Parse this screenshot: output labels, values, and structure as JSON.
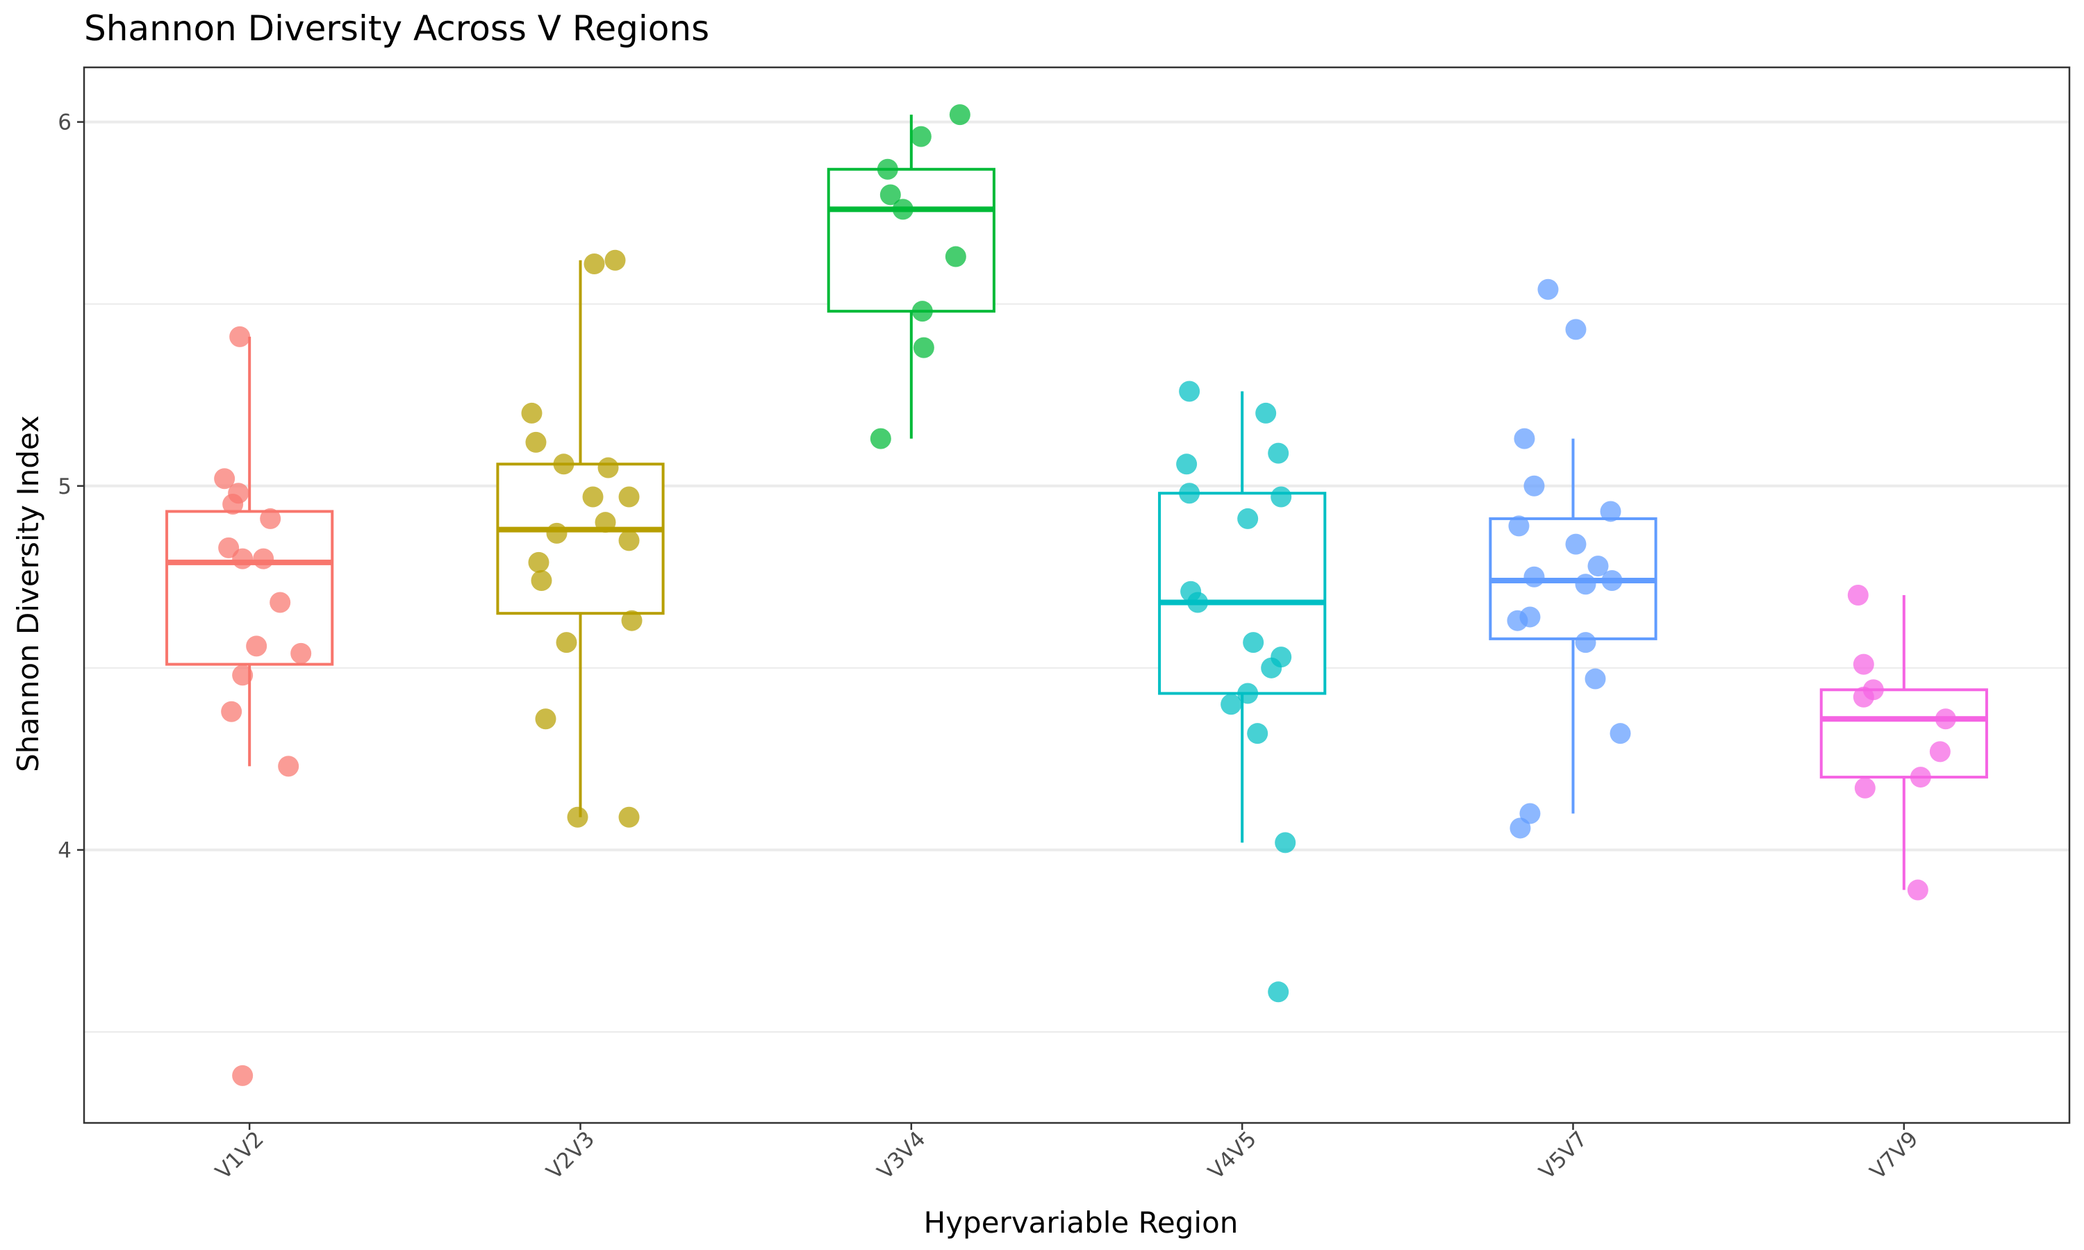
{
  "chart_data": {
    "type": "box",
    "title": "Shannon Diversity Across V Regions",
    "xlabel": "Hypervariable Region",
    "ylabel": "Shannon Diversity Index",
    "ylim": [
      3.25,
      6.15
    ],
    "y_ticks": [
      4,
      5,
      6
    ],
    "grid": true,
    "legend": "none",
    "categories": [
      "V1V2",
      "V2V3",
      "V3V4",
      "V4V5",
      "V5V7",
      "V7V9"
    ],
    "colors": [
      "#F8766D",
      "#B79F00",
      "#00BA38",
      "#00BFC4",
      "#619CFF",
      "#F564E3"
    ],
    "boxes": [
      {
        "q1": 4.51,
        "median": 4.79,
        "q3": 4.93,
        "whisker_low": 4.23,
        "whisker_high": 5.41
      },
      {
        "q1": 4.65,
        "median": 4.88,
        "q3": 5.06,
        "whisker_low": 4.09,
        "whisker_high": 5.62
      },
      {
        "q1": 5.48,
        "median": 5.76,
        "q3": 5.87,
        "whisker_low": 5.13,
        "whisker_high": 6.02
      },
      {
        "q1": 4.43,
        "median": 4.68,
        "q3": 4.98,
        "whisker_low": 4.02,
        "whisker_high": 5.26
      },
      {
        "q1": 4.58,
        "median": 4.74,
        "q3": 4.91,
        "whisker_low": 4.1,
        "whisker_high": 5.13
      },
      {
        "q1": 4.2,
        "median": 4.36,
        "q3": 4.44,
        "whisker_low": 3.89,
        "whisker_high": 4.7
      }
    ],
    "points": [
      [
        {
          "x": -0.07,
          "y": 5.41
        },
        {
          "x": -0.18,
          "y": 5.02
        },
        {
          "x": -0.08,
          "y": 4.98
        },
        {
          "x": -0.12,
          "y": 4.95
        },
        {
          "x": 0.15,
          "y": 4.91
        },
        {
          "x": -0.15,
          "y": 4.83
        },
        {
          "x": -0.05,
          "y": 4.8
        },
        {
          "x": 0.1,
          "y": 4.8
        },
        {
          "x": 0.22,
          "y": 4.68
        },
        {
          "x": 0.05,
          "y": 4.56
        },
        {
          "x": 0.37,
          "y": 4.54
        },
        {
          "x": -0.05,
          "y": 4.48
        },
        {
          "x": -0.13,
          "y": 4.38
        },
        {
          "x": 0.28,
          "y": 4.23
        },
        {
          "x": -0.05,
          "y": 3.38
        }
      ],
      [
        {
          "x": 0.25,
          "y": 5.62
        },
        {
          "x": 0.1,
          "y": 5.61
        },
        {
          "x": -0.35,
          "y": 5.2
        },
        {
          "x": -0.32,
          "y": 5.12
        },
        {
          "x": -0.12,
          "y": 5.06
        },
        {
          "x": 0.2,
          "y": 5.05
        },
        {
          "x": 0.09,
          "y": 4.97
        },
        {
          "x": 0.35,
          "y": 4.97
        },
        {
          "x": 0.18,
          "y": 4.9
        },
        {
          "x": -0.17,
          "y": 4.87
        },
        {
          "x": 0.35,
          "y": 4.85
        },
        {
          "x": -0.3,
          "y": 4.79
        },
        {
          "x": -0.28,
          "y": 4.74
        },
        {
          "x": 0.37,
          "y": 4.63
        },
        {
          "x": -0.1,
          "y": 4.57
        },
        {
          "x": -0.25,
          "y": 4.36
        },
        {
          "x": -0.02,
          "y": 4.09
        },
        {
          "x": 0.35,
          "y": 4.09
        }
      ],
      [
        {
          "x": 0.35,
          "y": 6.02
        },
        {
          "x": 0.07,
          "y": 5.96
        },
        {
          "x": -0.17,
          "y": 5.87
        },
        {
          "x": -0.15,
          "y": 5.8
        },
        {
          "x": -0.06,
          "y": 5.76
        },
        {
          "x": 0.32,
          "y": 5.63
        },
        {
          "x": 0.08,
          "y": 5.48
        },
        {
          "x": 0.09,
          "y": 5.38
        },
        {
          "x": -0.22,
          "y": 5.13
        }
      ],
      [
        {
          "x": -0.38,
          "y": 5.26
        },
        {
          "x": 0.17,
          "y": 5.2
        },
        {
          "x": 0.26,
          "y": 5.09
        },
        {
          "x": -0.4,
          "y": 5.06
        },
        {
          "x": -0.38,
          "y": 4.98
        },
        {
          "x": 0.28,
          "y": 4.97
        },
        {
          "x": 0.04,
          "y": 4.91
        },
        {
          "x": -0.37,
          "y": 4.71
        },
        {
          "x": -0.32,
          "y": 4.68
        },
        {
          "x": 0.08,
          "y": 4.57
        },
        {
          "x": 0.28,
          "y": 4.53
        },
        {
          "x": 0.21,
          "y": 4.5
        },
        {
          "x": 0.04,
          "y": 4.43
        },
        {
          "x": -0.08,
          "y": 4.4
        },
        {
          "x": 0.11,
          "y": 4.32
        },
        {
          "x": 0.31,
          "y": 4.02
        },
        {
          "x": 0.26,
          "y": 3.61
        }
      ],
      [
        {
          "x": -0.18,
          "y": 5.54
        },
        {
          "x": 0.02,
          "y": 5.43
        },
        {
          "x": -0.35,
          "y": 5.13
        },
        {
          "x": -0.28,
          "y": 5.0
        },
        {
          "x": 0.27,
          "y": 4.93
        },
        {
          "x": -0.39,
          "y": 4.89
        },
        {
          "x": 0.02,
          "y": 4.84
        },
        {
          "x": 0.18,
          "y": 4.78
        },
        {
          "x": -0.28,
          "y": 4.75
        },
        {
          "x": 0.09,
          "y": 4.73
        },
        {
          "x": 0.28,
          "y": 4.74
        },
        {
          "x": -0.31,
          "y": 4.64
        },
        {
          "x": -0.4,
          "y": 4.63
        },
        {
          "x": 0.09,
          "y": 4.57
        },
        {
          "x": 0.16,
          "y": 4.47
        },
        {
          "x": 0.34,
          "y": 4.32
        },
        {
          "x": -0.31,
          "y": 4.1
        },
        {
          "x": -0.38,
          "y": 4.06
        }
      ],
      [
        {
          "x": -0.33,
          "y": 4.7
        },
        {
          "x": -0.29,
          "y": 4.51
        },
        {
          "x": -0.22,
          "y": 4.44
        },
        {
          "x": -0.29,
          "y": 4.42
        },
        {
          "x": 0.3,
          "y": 4.36
        },
        {
          "x": 0.26,
          "y": 4.27
        },
        {
          "x": 0.12,
          "y": 4.2
        },
        {
          "x": -0.28,
          "y": 4.17
        },
        {
          "x": 0.1,
          "y": 3.89
        }
      ]
    ]
  }
}
